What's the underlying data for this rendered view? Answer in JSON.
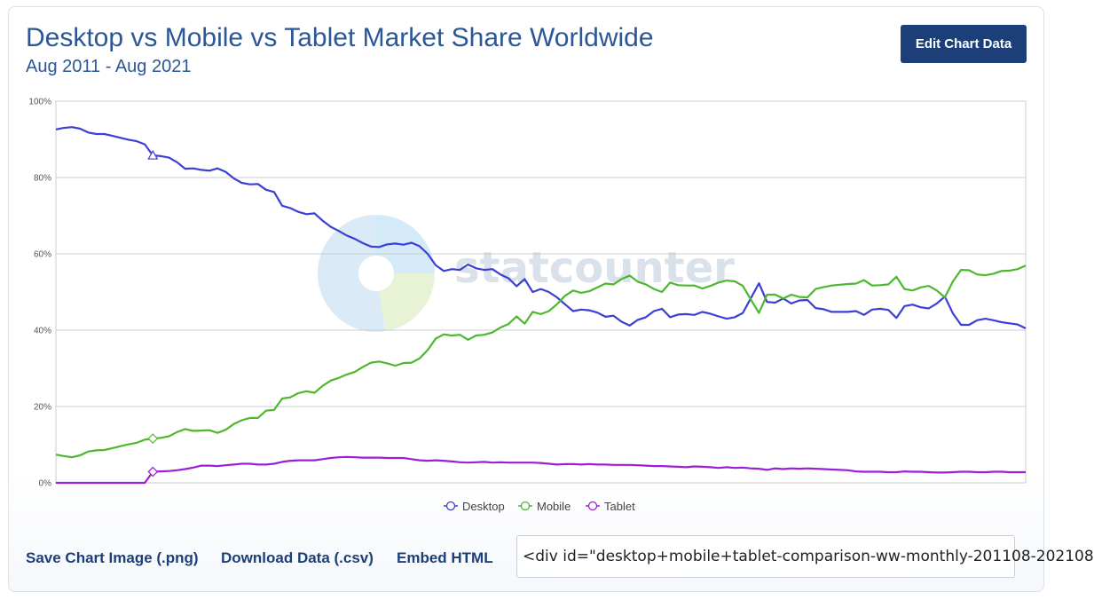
{
  "header": {
    "title": "Desktop vs Mobile vs Tablet Market Share Worldwide",
    "subtitle": "Aug 2011 - Aug 2021",
    "edit_button_label": "Edit Chart Data"
  },
  "watermark": {
    "text": "statcounter"
  },
  "footer": {
    "save_image_label": "Save Chart Image (.png)",
    "download_label": "Download Data (.csv)",
    "embed_label": "Embed HTML",
    "embed_value": "<div id=\"desktop+mobile+tablet-comparison-ww-monthly-201108-202108"
  },
  "colors": {
    "Desktop": "#3a3fd6",
    "Mobile": "#4cb82e",
    "Tablet": "#9b1fd6"
  },
  "chart_data": {
    "type": "line",
    "x_start": "Aug 2011",
    "x_end": "Aug 2021",
    "ylim": [
      0,
      100
    ],
    "y_ticks": [
      "0%",
      "20%",
      "40%",
      "60%",
      "80%",
      "100%"
    ],
    "grid": true,
    "legend": "bottom-center",
    "series": [
      {
        "name": "Desktop",
        "marker": "triangle",
        "values": [
          92.6,
          93.0,
          93.2,
          92.8,
          91.8,
          91.4,
          91.4,
          90.9,
          90.4,
          89.9,
          89.5,
          88.7,
          85.8,
          85.6,
          85.2,
          84.0,
          82.3,
          82.4,
          82.0,
          81.8,
          82.4,
          81.5,
          79.8,
          78.6,
          78.2,
          78.3,
          76.8,
          76.2,
          72.6,
          72.0,
          71.0,
          70.4,
          70.6,
          68.7,
          67.1,
          66.0,
          64.8,
          63.9,
          62.8,
          61.9,
          61.8,
          62.5,
          62.7,
          62.4,
          62.9,
          62.0,
          60.0,
          57.0,
          55.5,
          56.0,
          55.8,
          57.2,
          56.2,
          55.8,
          56.0,
          54.6,
          53.6,
          51.5,
          53.4,
          50.0,
          50.8,
          50.0,
          48.6,
          46.8,
          45.0,
          45.4,
          45.2,
          44.6,
          43.5,
          43.8,
          42.2,
          41.2,
          42.7,
          43.4,
          45.0,
          45.6,
          43.4,
          44.1,
          44.2,
          44.0,
          44.8,
          44.3,
          43.6,
          43.0,
          43.4,
          44.5,
          48.4,
          52.3,
          47.4,
          47.2,
          48.3,
          47.0,
          47.8,
          47.9,
          45.8,
          45.5,
          44.8,
          44.8,
          44.8,
          45.0,
          44.0,
          45.4,
          45.6,
          45.3,
          43.2,
          46.3,
          46.7,
          46.0,
          45.7,
          47.0,
          48.8,
          44.4,
          41.4,
          41.4,
          42.6,
          43.0,
          42.6,
          42.1,
          41.8,
          41.5,
          40.5
        ]
      },
      {
        "name": "Mobile",
        "marker": "diamond",
        "values": [
          7.4,
          7.0,
          6.7,
          7.2,
          8.2,
          8.5,
          8.6,
          9.1,
          9.6,
          10.1,
          10.5,
          11.3,
          11.6,
          11.8,
          12.2,
          13.3,
          14.1,
          13.6,
          13.7,
          13.8,
          13.1,
          13.9,
          15.4,
          16.4,
          17.0,
          17.0,
          18.9,
          19.1,
          22.1,
          22.4,
          23.5,
          24.0,
          23.6,
          25.4,
          26.8,
          27.5,
          28.4,
          29.1,
          30.4,
          31.5,
          31.8,
          31.3,
          30.7,
          31.4,
          31.5,
          32.6,
          34.8,
          37.8,
          38.9,
          38.6,
          38.8,
          37.5,
          38.6,
          38.8,
          39.4,
          40.7,
          41.6,
          43.6,
          41.7,
          44.8,
          44.2,
          45.0,
          46.8,
          49.0,
          50.4,
          49.8,
          50.2,
          51.2,
          52.2,
          52.0,
          53.4,
          54.3,
          52.7,
          52.0,
          50.8,
          50.0,
          52.5,
          51.8,
          51.7,
          51.7,
          50.9,
          51.6,
          52.5,
          53.0,
          52.8,
          51.6,
          48.0,
          44.5,
          49.3,
          49.3,
          48.3,
          49.3,
          48.7,
          48.6,
          50.8,
          51.3,
          51.7,
          51.9,
          52.1,
          52.2,
          53.1,
          51.7,
          51.8,
          52.0,
          54.0,
          50.8,
          50.4,
          51.2,
          51.6,
          50.4,
          48.6,
          52.8,
          55.8,
          55.7,
          54.6,
          54.4,
          54.8,
          55.5,
          55.6,
          56.0,
          56.9
        ]
      },
      {
        "name": "Tablet",
        "marker": "diamond",
        "values": [
          0,
          0,
          0,
          0,
          0,
          0,
          0,
          0,
          0,
          0,
          0,
          0,
          2.9,
          3.0,
          3.1,
          3.3,
          3.6,
          4.0,
          4.5,
          4.5,
          4.4,
          4.6,
          4.8,
          5.0,
          5.0,
          4.8,
          4.8,
          5.0,
          5.5,
          5.8,
          5.9,
          5.9,
          5.9,
          6.2,
          6.5,
          6.7,
          6.8,
          6.7,
          6.6,
          6.6,
          6.6,
          6.5,
          6.5,
          6.5,
          6.2,
          5.9,
          5.8,
          5.9,
          5.8,
          5.6,
          5.4,
          5.3,
          5.4,
          5.5,
          5.3,
          5.4,
          5.3,
          5.3,
          5.3,
          5.3,
          5.2,
          5.0,
          4.8,
          4.9,
          4.9,
          4.8,
          4.9,
          4.8,
          4.8,
          4.7,
          4.7,
          4.7,
          4.6,
          4.5,
          4.4,
          4.4,
          4.3,
          4.2,
          4.1,
          4.3,
          4.2,
          4.1,
          3.9,
          4.1,
          3.9,
          4.0,
          3.8,
          3.7,
          3.4,
          3.8,
          3.6,
          3.8,
          3.7,
          3.8,
          3.7,
          3.6,
          3.5,
          3.4,
          3.3,
          3.0,
          2.9,
          2.9,
          2.9,
          2.8,
          2.8,
          3.0,
          2.9,
          2.9,
          2.8,
          2.7,
          2.7,
          2.8,
          2.9,
          2.9,
          2.8,
          2.8,
          2.9,
          2.9,
          2.8,
          2.8,
          2.8
        ]
      }
    ]
  }
}
